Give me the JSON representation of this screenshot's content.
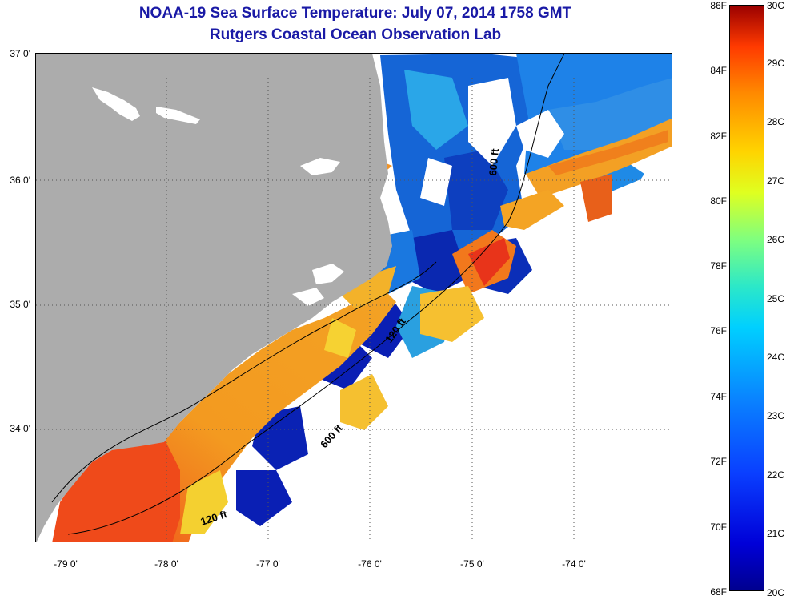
{
  "title": {
    "line1": "NOAA-19 Sea Surface Temperature:  July 07, 2014 1758 GMT",
    "line2": "Rutgers Coastal Ocean Observation Lab"
  },
  "axes": {
    "latitude_labels": [
      "37 0'",
      "36 0'",
      "35 0'",
      "34 0'"
    ],
    "longitude_labels": [
      "-79 0'",
      "-78 0'",
      "-77 0'",
      "-76 0'",
      "-75 0'",
      "-74 0'"
    ]
  },
  "depth_contours": {
    "label_120ft_south": "120 ft",
    "label_120ft_north": "120 ft",
    "label_600ft_south": "600 ft",
    "label_600ft_north": "600 ft"
  },
  "colorbar": {
    "fahrenheit_labels": [
      "86F",
      "84F",
      "82F",
      "80F",
      "78F",
      "76F",
      "74F",
      "72F",
      "70F",
      "68F"
    ],
    "celsius_labels": [
      "30C",
      "29C",
      "28C",
      "27C",
      "26C",
      "25C",
      "24C",
      "23C",
      "22C",
      "21C",
      "20C"
    ]
  },
  "colors": {
    "land": "#acacac",
    "no_data": "#ffffff",
    "title": "#1a1aa6",
    "warm": "#ef4f1c",
    "cold": "#0a1fb4"
  }
}
